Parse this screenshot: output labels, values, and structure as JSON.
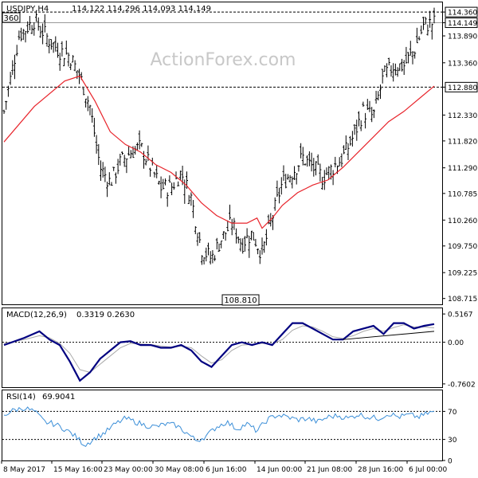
{
  "header": {
    "symbol": "USDJPY,H4",
    "ohlc": "114.122 114.296 114.093 114.149"
  },
  "watermark": "ActionForex.com",
  "colors": {
    "price": "#000000",
    "ma": "#e8242b",
    "macd": "#000080",
    "signal": "#a9a9a9",
    "rsi": "#3c8fd8",
    "grid": "#000000"
  },
  "chart_data": [
    {
      "type": "candlestick",
      "title": "USDJPY,H4",
      "ylim": [
        108.6,
        114.55
      ],
      "y_ticks": [
        "114.360",
        "114.149",
        "113.890",
        "113.360",
        "112.880",
        "112.330",
        "111.820",
        "111.290",
        "110.785",
        "110.260",
        "109.750",
        "109.225",
        "108.715"
      ],
      "horizontal_lines": [
        114.36,
        112.88
      ],
      "current_price": 114.149,
      "annotations": [
        "114.360",
        "108.810",
        "360"
      ],
      "x_ticks": [
        "8 May 2017",
        "15 May 16:00",
        "23 May 00:00",
        "30 May 08:00",
        "6 Jun 16:00",
        "14 Jun 00:00",
        "21 Jun 08:00",
        "28 Jun 16:00",
        "6 Jul 00:00"
      ],
      "close_path": [
        [
          0,
          112.4
        ],
        [
          1.5,
          113.9
        ],
        [
          3,
          114.2
        ],
        [
          4.5,
          113.8
        ],
        [
          5.5,
          113.6
        ],
        [
          6.5,
          113.5
        ],
        [
          7.5,
          113.1
        ],
        [
          8.5,
          112.5
        ],
        [
          9.5,
          111.3
        ],
        [
          10.5,
          111.0
        ],
        [
          11.5,
          111.4
        ],
        [
          12.5,
          111.6
        ],
        [
          13.5,
          111.7
        ],
        [
          14.5,
          111.3
        ],
        [
          15.5,
          110.9
        ],
        [
          16.5,
          110.9
        ],
        [
          17.5,
          111.2
        ],
        [
          18.5,
          110.7
        ],
        [
          19.5,
          109.7
        ],
        [
          20.5,
          109.5
        ],
        [
          21.5,
          109.9
        ],
        [
          22.5,
          110.2
        ],
        [
          23.5,
          109.8
        ],
        [
          24.5,
          110.0
        ],
        [
          25.5,
          109.6
        ],
        [
          26.5,
          110.3
        ],
        [
          27.5,
          111.0
        ],
        [
          28.5,
          111.2
        ],
        [
          29.5,
          111.5
        ],
        [
          30.5,
          111.3
        ],
        [
          31.5,
          111.1
        ],
        [
          32.5,
          111.3
        ],
        [
          33.5,
          111.5
        ],
        [
          34.5,
          111.9
        ],
        [
          35.5,
          112.4
        ],
        [
          36.5,
          112.3
        ],
        [
          37.5,
          113.1
        ],
        [
          38.5,
          113.3
        ],
        [
          39.5,
          113.3
        ],
        [
          40.5,
          113.6
        ],
        [
          41.5,
          114.1
        ],
        [
          42.5,
          114.149
        ]
      ],
      "ma_path": [
        [
          0,
          111.8
        ],
        [
          3,
          112.5
        ],
        [
          6,
          113.0
        ],
        [
          7.5,
          113.1
        ],
        [
          9,
          112.6
        ],
        [
          10.5,
          112.0
        ],
        [
          12,
          111.75
        ],
        [
          13.5,
          111.6
        ],
        [
          15,
          111.35
        ],
        [
          16.5,
          111.2
        ],
        [
          18,
          110.95
        ],
        [
          19.5,
          110.6
        ],
        [
          21,
          110.35
        ],
        [
          22.5,
          110.2
        ],
        [
          24,
          110.2
        ],
        [
          25,
          110.3
        ],
        [
          25.5,
          110.1
        ],
        [
          26.5,
          110.3
        ],
        [
          27.5,
          110.55
        ],
        [
          29,
          110.8
        ],
        [
          30.5,
          110.95
        ],
        [
          32,
          111.05
        ],
        [
          33.5,
          111.3
        ],
        [
          35,
          111.6
        ],
        [
          36.5,
          111.9
        ],
        [
          38,
          112.2
        ],
        [
          39.5,
          112.4
        ],
        [
          41,
          112.65
        ],
        [
          42.5,
          112.9
        ]
      ]
    },
    {
      "type": "line",
      "title": "MACD(12,26,9)",
      "values_label": "0.3319 0.2630",
      "ylim": [
        -0.82,
        0.62
      ],
      "y_ticks": [
        "0.5167",
        "0.00",
        "-0.7602"
      ],
      "zero_line": 0,
      "series": [
        {
          "name": "MACD",
          "points": [
            [
              0,
              -0.05
            ],
            [
              2,
              0.08
            ],
            [
              3.5,
              0.2
            ],
            [
              4.5,
              0.05
            ],
            [
              5.5,
              -0.05
            ],
            [
              6.5,
              -0.35
            ],
            [
              7.5,
              -0.7
            ],
            [
              8.5,
              -0.55
            ],
            [
              9.5,
              -0.3
            ],
            [
              10.5,
              -0.15
            ],
            [
              11.5,
              0.0
            ],
            [
              12.5,
              0.02
            ],
            [
              13.5,
              -0.05
            ],
            [
              14.5,
              -0.05
            ],
            [
              15.5,
              -0.1
            ],
            [
              16.5,
              -0.1
            ],
            [
              17.5,
              -0.05
            ],
            [
              18.5,
              -0.15
            ],
            [
              19.5,
              -0.35
            ],
            [
              20.5,
              -0.45
            ],
            [
              21.5,
              -0.25
            ],
            [
              22.5,
              -0.05
            ],
            [
              23.5,
              0.0
            ],
            [
              24.5,
              -0.05
            ],
            [
              25.5,
              0.0
            ],
            [
              26.5,
              -0.05
            ],
            [
              27.5,
              0.15
            ],
            [
              28.5,
              0.35
            ],
            [
              29.5,
              0.35
            ],
            [
              30.5,
              0.25
            ],
            [
              31.5,
              0.15
            ],
            [
              32.5,
              0.05
            ],
            [
              33.5,
              0.05
            ],
            [
              34.5,
              0.2
            ],
            [
              35.5,
              0.25
            ],
            [
              36.5,
              0.3
            ],
            [
              37.5,
              0.15
            ],
            [
              38.5,
              0.35
            ],
            [
              39.5,
              0.35
            ],
            [
              40.5,
              0.25
            ],
            [
              41.5,
              0.3
            ],
            [
              42.5,
              0.3319
            ]
          ]
        },
        {
          "name": "Signal",
          "points": [
            [
              0,
              -0.02
            ],
            [
              2,
              0.05
            ],
            [
              3.5,
              0.12
            ],
            [
              4.5,
              0.08
            ],
            [
              5.5,
              -0.02
            ],
            [
              6.5,
              -0.2
            ],
            [
              7.5,
              -0.5
            ],
            [
              8.5,
              -0.55
            ],
            [
              9.5,
              -0.4
            ],
            [
              10.5,
              -0.25
            ],
            [
              11.5,
              -0.1
            ],
            [
              12.5,
              -0.02
            ],
            [
              13.5,
              -0.03
            ],
            [
              14.5,
              -0.04
            ],
            [
              15.5,
              -0.07
            ],
            [
              16.5,
              -0.09
            ],
            [
              17.5,
              -0.07
            ],
            [
              18.5,
              -0.1
            ],
            [
              19.5,
              -0.25
            ],
            [
              20.5,
              -0.38
            ],
            [
              21.5,
              -0.32
            ],
            [
              22.5,
              -0.15
            ],
            [
              23.5,
              -0.05
            ],
            [
              24.5,
              -0.04
            ],
            [
              25.5,
              -0.02
            ],
            [
              26.5,
              -0.03
            ],
            [
              27.5,
              0.05
            ],
            [
              28.5,
              0.22
            ],
            [
              29.5,
              0.3
            ],
            [
              30.5,
              0.28
            ],
            [
              31.5,
              0.2
            ],
            [
              32.5,
              0.1
            ],
            [
              33.5,
              0.07
            ],
            [
              34.5,
              0.12
            ],
            [
              35.5,
              0.2
            ],
            [
              36.5,
              0.25
            ],
            [
              37.5,
              0.2
            ],
            [
              38.5,
              0.27
            ],
            [
              39.5,
              0.32
            ],
            [
              40.5,
              0.28
            ],
            [
              41.5,
              0.28
            ],
            [
              42.5,
              0.263
            ]
          ]
        }
      ],
      "trendline": [
        [
          33.5,
          0.05
        ],
        [
          42.5,
          0.2
        ]
      ]
    },
    {
      "type": "line",
      "title": "RSI(14)",
      "values_label": "69.9041",
      "ylim": [
        0,
        100
      ],
      "y_ticks": [
        "70",
        "30",
        "0"
      ],
      "levels": [
        70,
        30
      ],
      "series": [
        {
          "name": "RSI",
          "points": [
            [
              0,
              65
            ],
            [
              1,
              72
            ],
            [
              2,
              75
            ],
            [
              3,
              70
            ],
            [
              4,
              55
            ],
            [
              5,
              52
            ],
            [
              6,
              45
            ],
            [
              7,
              35
            ],
            [
              8,
              22
            ],
            [
              9,
              32
            ],
            [
              10,
              40
            ],
            [
              11,
              52
            ],
            [
              12,
              60
            ],
            [
              13,
              55
            ],
            [
              14,
              50
            ],
            [
              15,
              48
            ],
            [
              16,
              52
            ],
            [
              17,
              50
            ],
            [
              18,
              40
            ],
            [
              19,
              28
            ],
            [
              20,
              35
            ],
            [
              21,
              48
            ],
            [
              22,
              55
            ],
            [
              23,
              45
            ],
            [
              24,
              52
            ],
            [
              25,
              42
            ],
            [
              26,
              58
            ],
            [
              27,
              65
            ],
            [
              28,
              62
            ],
            [
              29,
              58
            ],
            [
              30,
              60
            ],
            [
              31,
              55
            ],
            [
              32,
              62
            ],
            [
              33,
              64
            ],
            [
              34,
              60
            ],
            [
              35,
              66
            ],
            [
              36,
              62
            ],
            [
              37,
              60
            ],
            [
              38,
              67
            ],
            [
              39,
              62
            ],
            [
              40,
              65
            ],
            [
              41,
              62
            ],
            [
              42,
              68
            ],
            [
              42.5,
              69.9
            ]
          ]
        }
      ]
    }
  ]
}
